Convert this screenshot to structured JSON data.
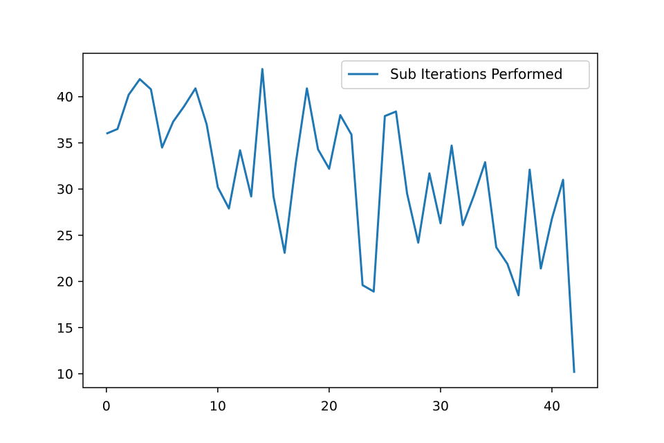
{
  "chart_data": {
    "type": "line",
    "title": "",
    "xlabel": "",
    "ylabel": "",
    "xlim": [
      -2.1,
      44.1
    ],
    "ylim": [
      8.5,
      44.7
    ],
    "x_ticks": [
      0,
      10,
      20,
      30,
      40
    ],
    "y_ticks": [
      10,
      15,
      20,
      25,
      30,
      35,
      40
    ],
    "grid": false,
    "legend_position": "top-right",
    "series": [
      {
        "name": "Sub Iterations Performed",
        "color": "#1f77b4",
        "x": [
          0,
          1,
          2,
          3,
          4,
          5,
          6,
          7,
          8,
          9,
          10,
          11,
          12,
          13,
          14,
          15,
          16,
          17,
          18,
          19,
          20,
          21,
          22,
          23,
          24,
          25,
          26,
          27,
          28,
          29,
          30,
          31,
          32,
          33,
          34,
          35,
          36,
          37,
          38,
          39,
          40,
          41,
          42
        ],
        "values": [
          36.0,
          36.5,
          40.2,
          41.9,
          40.8,
          34.5,
          37.3,
          39.0,
          40.9,
          37.0,
          30.2,
          27.9,
          34.2,
          29.2,
          43.0,
          29.2,
          23.1,
          32.8,
          40.9,
          34.3,
          32.2,
          38.0,
          35.9,
          19.6,
          18.9,
          37.9,
          38.4,
          29.5,
          24.2,
          31.7,
          26.3,
          34.7,
          26.1,
          29.3,
          32.9,
          23.7,
          21.9,
          18.5,
          32.1,
          21.4,
          26.8,
          31.0,
          10.1
        ]
      }
    ]
  }
}
